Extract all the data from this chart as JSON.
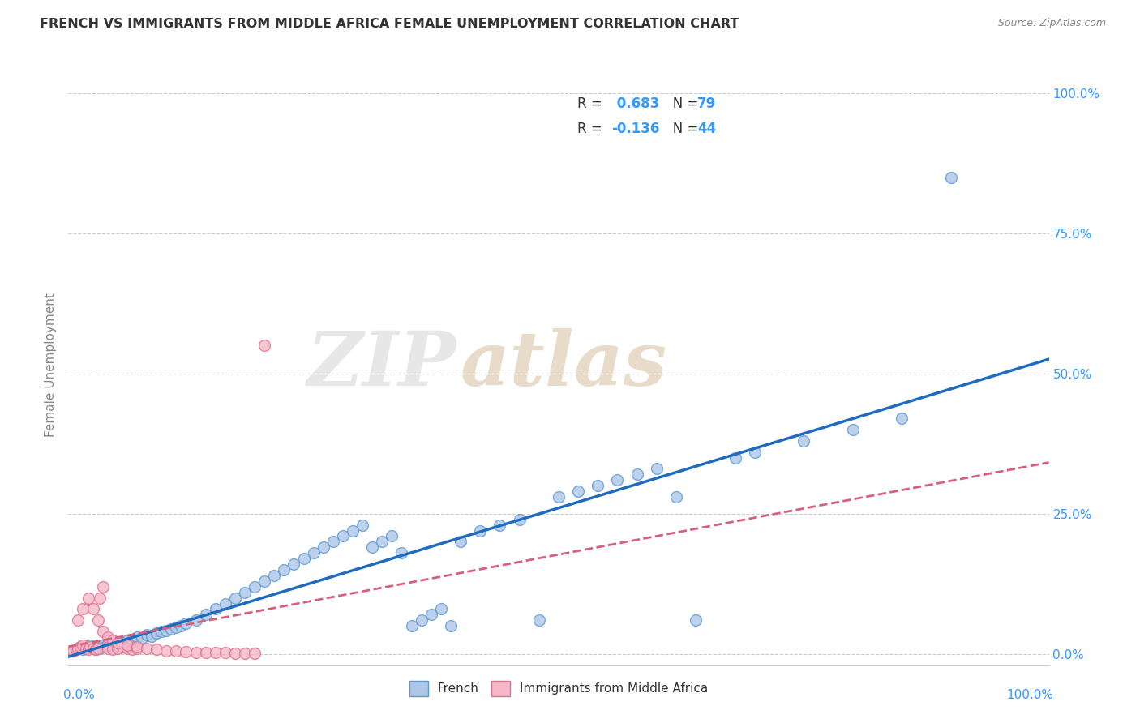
{
  "title": "FRENCH VS IMMIGRANTS FROM MIDDLE AFRICA FEMALE UNEMPLOYMENT CORRELATION CHART",
  "source": "Source: ZipAtlas.com",
  "ylabel": "Female Unemployment",
  "ytick_labels": [
    "100.0%",
    "75.0%",
    "50.0%",
    "25.0%",
    "0.0%"
  ],
  "ytick_values": [
    1.0,
    0.75,
    0.5,
    0.25,
    0.0
  ],
  "xlim": [
    0.0,
    1.0
  ],
  "ylim": [
    -0.02,
    1.05
  ],
  "french_color": "#aec6e8",
  "french_edge_color": "#5b9bd5",
  "immigrant_color": "#f4b8c8",
  "immigrant_edge_color": "#e07090",
  "french_line_color": "#1f6bbf",
  "immigrant_line_color": "#d4607a",
  "r_french": 0.683,
  "n_french": 79,
  "r_immigrant": -0.136,
  "n_immigrant": 44,
  "legend_label_french": "French",
  "legend_label_immigrant": "Immigrants from Middle Africa",
  "watermark_zip": "ZIP",
  "watermark_atlas": "atlas",
  "french_scatter_x": [
    0.005,
    0.008,
    0.01,
    0.012,
    0.015,
    0.018,
    0.02,
    0.022,
    0.025,
    0.028,
    0.03,
    0.032,
    0.035,
    0.038,
    0.04,
    0.042,
    0.045,
    0.048,
    0.05,
    0.055,
    0.06,
    0.065,
    0.07,
    0.075,
    0.08,
    0.085,
    0.09,
    0.095,
    0.1,
    0.105,
    0.11,
    0.115,
    0.12,
    0.13,
    0.14,
    0.15,
    0.16,
    0.17,
    0.18,
    0.19,
    0.2,
    0.21,
    0.22,
    0.23,
    0.24,
    0.25,
    0.26,
    0.27,
    0.28,
    0.29,
    0.3,
    0.31,
    0.32,
    0.33,
    0.34,
    0.35,
    0.36,
    0.37,
    0.38,
    0.39,
    0.4,
    0.42,
    0.44,
    0.46,
    0.48,
    0.5,
    0.52,
    0.54,
    0.56,
    0.58,
    0.6,
    0.62,
    0.64,
    0.68,
    0.7,
    0.75,
    0.8,
    0.85,
    0.9
  ],
  "french_scatter_y": [
    0.005,
    0.008,
    0.01,
    0.012,
    0.008,
    0.01,
    0.012,
    0.015,
    0.01,
    0.008,
    0.012,
    0.01,
    0.015,
    0.012,
    0.018,
    0.015,
    0.02,
    0.018,
    0.022,
    0.02,
    0.025,
    0.022,
    0.03,
    0.028,
    0.035,
    0.032,
    0.038,
    0.04,
    0.042,
    0.045,
    0.048,
    0.05,
    0.055,
    0.06,
    0.07,
    0.08,
    0.09,
    0.1,
    0.11,
    0.12,
    0.13,
    0.14,
    0.15,
    0.16,
    0.17,
    0.18,
    0.19,
    0.2,
    0.21,
    0.22,
    0.23,
    0.19,
    0.2,
    0.21,
    0.18,
    0.05,
    0.06,
    0.07,
    0.08,
    0.05,
    0.2,
    0.22,
    0.23,
    0.24,
    0.06,
    0.28,
    0.29,
    0.3,
    0.31,
    0.32,
    0.33,
    0.28,
    0.06,
    0.35,
    0.36,
    0.38,
    0.4,
    0.42,
    0.85
  ],
  "immigrant_scatter_x": [
    0.005,
    0.008,
    0.01,
    0.012,
    0.015,
    0.018,
    0.02,
    0.022,
    0.025,
    0.028,
    0.03,
    0.032,
    0.035,
    0.04,
    0.045,
    0.05,
    0.055,
    0.06,
    0.065,
    0.07,
    0.01,
    0.015,
    0.02,
    0.025,
    0.03,
    0.035,
    0.04,
    0.045,
    0.05,
    0.06,
    0.07,
    0.08,
    0.09,
    0.1,
    0.11,
    0.12,
    0.13,
    0.14,
    0.15,
    0.16,
    0.17,
    0.18,
    0.19,
    0.2
  ],
  "immigrant_scatter_y": [
    0.005,
    0.008,
    0.01,
    0.012,
    0.015,
    0.01,
    0.008,
    0.012,
    0.01,
    0.008,
    0.01,
    0.1,
    0.12,
    0.01,
    0.008,
    0.01,
    0.012,
    0.01,
    0.008,
    0.01,
    0.06,
    0.08,
    0.1,
    0.08,
    0.06,
    0.04,
    0.03,
    0.025,
    0.02,
    0.015,
    0.012,
    0.01,
    0.008,
    0.006,
    0.005,
    0.004,
    0.003,
    0.002,
    0.002,
    0.002,
    0.001,
    0.001,
    0.001,
    0.55
  ],
  "grid_color": "#cccccc",
  "tick_color": "#3399ff",
  "title_color": "#333333",
  "source_color": "#888888",
  "ylabel_color": "#888888"
}
